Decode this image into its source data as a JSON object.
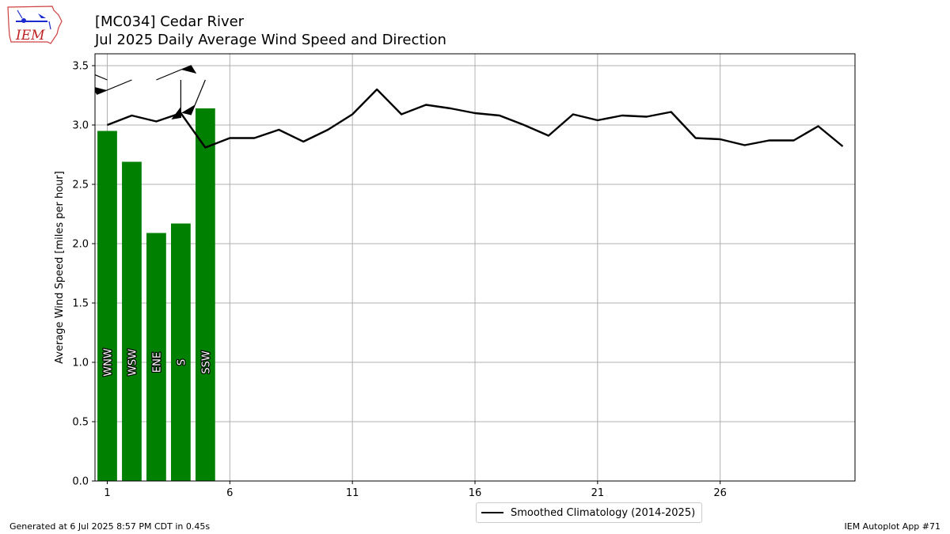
{
  "title": {
    "line1": "[MC034] Cedar River",
    "line2": "Jul 2025 Daily Average Wind Speed and Direction"
  },
  "logo_text": "IEM",
  "footer": {
    "generated": "Generated at 6 Jul 2025 8:57 PM CDT in 0.45s",
    "app": "IEM Autoplot App #71"
  },
  "legend": {
    "climatology_label": "Smoothed Climatology (2014-2025)"
  },
  "colors": {
    "bars": "#008000",
    "line": "#000000",
    "grid": "#b0b0b0"
  },
  "chart_data": {
    "type": "bar",
    "title": "[MC034] Cedar River\nJul 2025 Daily Average Wind Speed and Direction",
    "ylabel": "Average Wind Speed [miles per hour]",
    "xlabel": "",
    "xlim": [
      0.5,
      31.5
    ],
    "ylim": [
      0,
      3.6
    ],
    "xticks": [
      1,
      6,
      11,
      16,
      21,
      26
    ],
    "yticks": [
      0.0,
      0.5,
      1.0,
      1.5,
      2.0,
      2.5,
      3.0,
      3.5
    ],
    "ytick_labels": [
      "0.0",
      "0.5",
      "1.0",
      "1.5",
      "2.0",
      "2.5",
      "3.0",
      "3.5"
    ],
    "grid": true,
    "legend_position": "bottom-center",
    "bars": {
      "days": [
        1,
        2,
        3,
        4,
        5
      ],
      "values": [
        2.95,
        2.69,
        2.09,
        2.17,
        3.14
      ],
      "directions": [
        "WNW",
        "WSW",
        "ENE",
        "S",
        "SSW"
      ],
      "direction_degrees": [
        292.5,
        247.5,
        67.5,
        180,
        202.5
      ]
    },
    "series": [
      {
        "name": "Smoothed Climatology (2014-2025)",
        "type": "line",
        "x": [
          1,
          2,
          3,
          4,
          5,
          6,
          7,
          8,
          9,
          10,
          11,
          12,
          13,
          14,
          15,
          16,
          17,
          18,
          19,
          20,
          21,
          22,
          23,
          24,
          25,
          26,
          27,
          28,
          29,
          30,
          31
        ],
        "values": [
          3.0,
          3.08,
          3.03,
          3.1,
          2.81,
          2.89,
          2.89,
          2.96,
          2.86,
          2.96,
          3.09,
          3.3,
          3.09,
          3.17,
          3.14,
          3.1,
          3.08,
          3.0,
          2.91,
          3.09,
          3.04,
          3.08,
          3.07,
          3.11,
          2.89,
          2.88,
          2.83,
          2.87,
          2.87,
          2.99,
          2.82
        ]
      }
    ]
  }
}
